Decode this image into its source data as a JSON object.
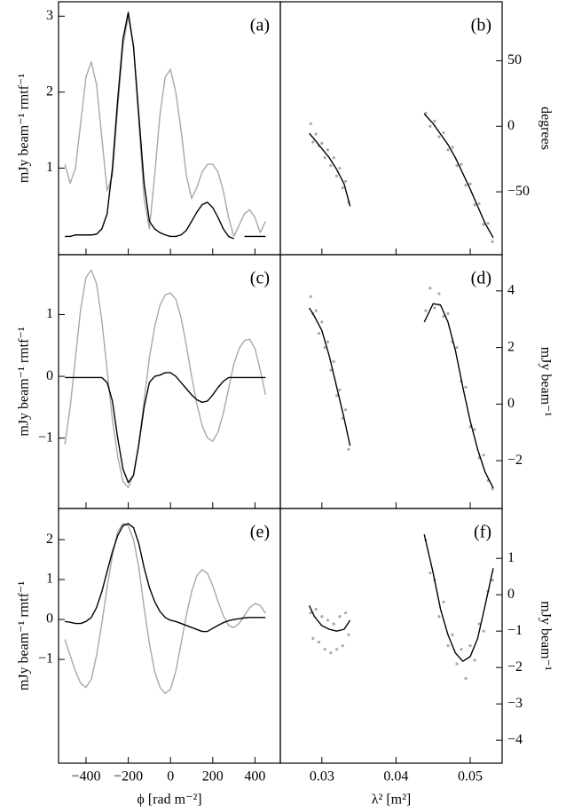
{
  "chart_data": [
    {
      "type": "line",
      "label": "(a)",
      "ylabel": "mJy beam⁻¹ rmtf⁻¹",
      "xlim": [
        -530,
        520
      ],
      "ylim": [
        -0.14,
        3.19
      ],
      "yticks": [
        1,
        2,
        3
      ],
      "x": [
        -500,
        -475,
        -450,
        -425,
        -400,
        -375,
        -350,
        -325,
        -300,
        -275,
        -250,
        -225,
        -200,
        -175,
        -150,
        -125,
        -100,
        -75,
        -50,
        -25,
        0,
        25,
        50,
        75,
        100,
        125,
        150,
        175,
        200,
        225,
        250,
        275,
        300,
        325,
        350,
        375,
        400,
        425,
        450
      ],
      "series": [
        {
          "color": "#a8a8a8",
          "values": [
            1.05,
            0.8,
            1.0,
            1.6,
            2.2,
            2.4,
            2.1,
            1.4,
            0.7,
            0.9,
            1.8,
            2.6,
            3.0,
            2.6,
            1.6,
            0.6,
            0.2,
            0.9,
            1.7,
            2.2,
            2.3,
            2.0,
            1.5,
            0.9,
            0.6,
            0.75,
            0.95,
            1.05,
            1.05,
            0.95,
            0.7,
            0.35,
            0.1,
            0.25,
            0.4,
            0.45,
            0.35,
            0.15,
            0.3
          ]
        },
        {
          "color": "#000000",
          "values": [
            0.1,
            0.1,
            0.12,
            0.12,
            0.12,
            0.12,
            0.13,
            0.2,
            0.4,
            1.0,
            1.9,
            2.7,
            3.05,
            2.6,
            1.7,
            0.8,
            0.3,
            0.2,
            0.15,
            0.12,
            0.1,
            0.1,
            0.12,
            0.18,
            0.3,
            0.42,
            0.52,
            0.55,
            0.48,
            0.35,
            0.2,
            0.1,
            0.07,
            null,
            0.1,
            0.1,
            0.1,
            0.1,
            0.1
          ]
        }
      ]
    },
    {
      "type": "scatter",
      "label": "(b)",
      "ylabel": "degrees",
      "xlim": [
        0.0244,
        0.0543
      ],
      "ylim": [
        -98,
        95
      ],
      "yticks": [
        {
          "value": -50,
          "label": "−50"
        },
        0,
        50
      ],
      "points": {
        "color": "#a8a8a8",
        "x": [
          0.0285,
          0.0288,
          0.0292,
          0.0296,
          0.03,
          0.0304,
          0.0308,
          0.0312,
          0.0316,
          0.032,
          0.0324,
          0.0328,
          0.0332,
          0.0336,
          0.044,
          0.0446,
          0.0452,
          0.0458,
          0.0464,
          0.047,
          0.0476,
          0.0482,
          0.0488,
          0.0494,
          0.05,
          0.0506,
          0.0512,
          0.0518,
          0.0524,
          0.053
        ],
        "values": [
          2,
          -12,
          -6,
          -15,
          -13,
          -24,
          -18,
          -30,
          -24,
          -38,
          -32,
          -47,
          -42,
          -58,
          10,
          0,
          4,
          -8,
          -5,
          -18,
          -16,
          -30,
          -29,
          -45,
          -44,
          -60,
          -59,
          -75,
          -74,
          -88
        ]
      },
      "fit": {
        "color": "#000000",
        "x": [
          0.0283,
          0.029,
          0.03,
          0.031,
          0.032,
          0.033,
          0.0338,
          null,
          0.0438,
          0.045,
          0.046,
          0.047,
          0.048,
          0.049,
          0.05,
          0.051,
          0.052,
          0.0531
        ],
        "values": [
          -5.4,
          -10,
          -17,
          -24,
          -33,
          -44,
          -61,
          null,
          9.5,
          2,
          -6,
          -14,
          -24,
          -36,
          -48,
          -61,
          -74,
          -85
        ]
      }
    },
    {
      "type": "line",
      "label": "(c)",
      "ylabel": "mJy beam⁻¹ rmtf⁻¹",
      "xlim": [
        -530,
        520
      ],
      "ylim": [
        -2.14,
        1.97
      ],
      "yticks": [
        {
          "value": -1,
          "label": "−1"
        },
        0,
        1
      ],
      "x": [
        -500,
        -475,
        -450,
        -425,
        -400,
        -375,
        -350,
        -325,
        -300,
        -275,
        -250,
        -225,
        -200,
        -175,
        -150,
        -125,
        -100,
        -75,
        -50,
        -25,
        0,
        25,
        50,
        75,
        100,
        125,
        150,
        175,
        200,
        225,
        250,
        275,
        300,
        325,
        350,
        375,
        400,
        425,
        450
      ],
      "series": [
        {
          "color": "#a8a8a8",
          "values": [
            -1.1,
            -0.5,
            0.3,
            1.1,
            1.6,
            1.72,
            1.5,
            0.9,
            0.1,
            -0.7,
            -1.3,
            -1.7,
            -1.8,
            -1.6,
            -1.1,
            -0.4,
            0.3,
            0.8,
            1.15,
            1.32,
            1.35,
            1.25,
            0.95,
            0.5,
            0,
            -0.45,
            -0.8,
            -1.0,
            -1.05,
            -0.9,
            -0.6,
            -0.2,
            0.2,
            0.45,
            0.58,
            0.6,
            0.45,
            0.1,
            -0.3
          ]
        },
        {
          "color": "#000000",
          "values": [
            -0.02,
            -0.02,
            -0.02,
            -0.02,
            -0.02,
            -0.02,
            -0.02,
            -0.02,
            -0.1,
            -0.4,
            -1.0,
            -1.5,
            -1.72,
            -1.6,
            -1.1,
            -0.5,
            -0.1,
            0,
            0.02,
            0.06,
            0.06,
            0,
            -0.1,
            -0.2,
            -0.3,
            -0.38,
            -0.42,
            -0.4,
            -0.3,
            -0.18,
            -0.08,
            -0.02,
            -0.02,
            -0.02,
            -0.02,
            -0.02,
            -0.02,
            -0.02,
            -0.02
          ]
        }
      ]
    },
    {
      "type": "scatter",
      "label": "(d)",
      "ylabel": "mJy beam⁻¹",
      "xlim": [
        0.0244,
        0.0543
      ],
      "ylim": [
        -3.69,
        5.28
      ],
      "yticks": [
        {
          "value": -2,
          "label": "−2"
        },
        0,
        2,
        4
      ],
      "points": {
        "color": "#a8a8a8",
        "x": [
          0.0285,
          0.0288,
          0.0292,
          0.0296,
          0.03,
          0.0304,
          0.0308,
          0.0312,
          0.0316,
          0.032,
          0.0324,
          0.0328,
          0.0332,
          0.0336,
          0.044,
          0.0446,
          0.0452,
          0.0458,
          0.0464,
          0.047,
          0.0476,
          0.0482,
          0.0488,
          0.0494,
          0.05,
          0.0506,
          0.0512,
          0.0518,
          0.0524,
          0.053
        ],
        "values": [
          3.8,
          3.2,
          3.3,
          2.5,
          2.9,
          2.0,
          2.2,
          1.2,
          1.5,
          0.3,
          0.5,
          -0.5,
          -0.2,
          -1.6,
          3.3,
          4.1,
          3.4,
          3.9,
          3.1,
          3.2,
          2.2,
          2.0,
          0.8,
          0.6,
          -0.8,
          -0.9,
          -1.9,
          -1.8,
          -2.7,
          -3.0
        ]
      },
      "fit": {
        "color": "#000000",
        "x": [
          0.0283,
          0.029,
          0.03,
          0.031,
          0.032,
          0.033,
          0.0338,
          null,
          0.0438,
          0.045,
          0.046,
          0.047,
          0.048,
          0.049,
          0.05,
          0.051,
          0.052,
          0.0531
        ],
        "values": [
          3.4,
          3.1,
          2.6,
          1.7,
          0.6,
          -0.5,
          -1.47,
          null,
          2.9,
          3.55,
          3.5,
          2.9,
          1.9,
          0.6,
          -0.6,
          -1.6,
          -2.4,
          -2.97
        ]
      }
    },
    {
      "type": "line",
      "label": "(e)",
      "ylabel": "mJy beam⁻¹ rmtf⁻¹",
      "xlabel": "ϕ [rad m⁻²]",
      "xlim": [
        -530,
        520
      ],
      "ylim": [
        -3.6,
        2.78
      ],
      "xticks": [
        {
          "value": -400,
          "label": "−400"
        },
        {
          "value": -200,
          "label": "−200"
        },
        0,
        200,
        400
      ],
      "yticks": [
        {
          "value": -1,
          "label": "−1"
        },
        0,
        1,
        2
      ],
      "x": [
        -500,
        -475,
        -450,
        -425,
        -400,
        -375,
        -350,
        -325,
        -300,
        -275,
        -250,
        -225,
        -200,
        -175,
        -150,
        -125,
        -100,
        -75,
        -50,
        -25,
        0,
        25,
        50,
        75,
        100,
        125,
        150,
        175,
        200,
        225,
        250,
        275,
        300,
        325,
        350,
        375,
        400,
        425,
        450
      ],
      "series": [
        {
          "color": "#a8a8a8",
          "values": [
            -0.5,
            -0.9,
            -1.3,
            -1.6,
            -1.7,
            -1.5,
            -0.9,
            -0.1,
            0.8,
            1.6,
            2.2,
            2.4,
            2.35,
            2.0,
            1.3,
            0.3,
            -0.6,
            -1.3,
            -1.7,
            -1.85,
            -1.75,
            -1.3,
            -0.6,
            0.1,
            0.7,
            1.1,
            1.25,
            1.15,
            0.85,
            0.45,
            0.1,
            -0.15,
            -0.2,
            -0.1,
            0.1,
            0.3,
            0.4,
            0.35,
            0.15
          ]
        },
        {
          "color": "#000000",
          "values": [
            -0.05,
            -0.07,
            -0.1,
            -0.1,
            -0.05,
            0.05,
            0.3,
            0.7,
            1.2,
            1.7,
            2.1,
            2.35,
            2.4,
            2.3,
            1.9,
            1.3,
            0.8,
            0.45,
            0.2,
            0.05,
            -0.02,
            -0.05,
            -0.1,
            -0.15,
            -0.2,
            -0.25,
            -0.3,
            -0.3,
            -0.22,
            -0.15,
            -0.08,
            -0.03,
            0,
            0.02,
            0.04,
            0.05,
            0.05,
            0.05,
            0.05
          ]
        }
      ]
    },
    {
      "type": "scatter",
      "label": "(f)",
      "ylabel": "mJy beam⁻¹",
      "xlabel": "λ² [m²]",
      "xlim": [
        0.0244,
        0.0543
      ],
      "ylim": [
        -4.63,
        2.37
      ],
      "xticks": [
        0.03,
        0.04,
        0.05
      ],
      "yticks": [
        {
          "value": -4,
          "label": "−4"
        },
        {
          "value": -3,
          "label": "−3"
        },
        {
          "value": -2,
          "label": "−2"
        },
        {
          "value": -1,
          "label": "−1"
        },
        0,
        1
      ],
      "points": {
        "color": "#a8a8a8",
        "x": [
          0.0285,
          0.0288,
          0.0292,
          0.0296,
          0.03,
          0.0304,
          0.0308,
          0.0312,
          0.0316,
          0.032,
          0.0324,
          0.0328,
          0.0332,
          0.0336,
          0.044,
          0.0446,
          0.0452,
          0.0458,
          0.0464,
          0.047,
          0.0476,
          0.0482,
          0.0488,
          0.0494,
          0.05,
          0.0506,
          0.0512,
          0.0518,
          0.0524,
          0.053
        ],
        "values": [
          -0.5,
          -1.2,
          -0.4,
          -1.3,
          -0.6,
          -1.5,
          -0.7,
          -1.6,
          -0.8,
          -1.5,
          -0.6,
          -1.4,
          -0.5,
          -1.1,
          1.5,
          0.6,
          0.4,
          -0.6,
          -0.2,
          -1.4,
          -1.1,
          -1.9,
          -1.5,
          -2.3,
          -1.4,
          -1.8,
          -0.8,
          -1.0,
          0.1,
          0.4
        ]
      },
      "fit": {
        "color": "#000000",
        "x": [
          0.0283,
          0.029,
          0.03,
          0.031,
          0.032,
          0.033,
          0.0338,
          null,
          0.0438,
          0.045,
          0.046,
          0.047,
          0.048,
          0.049,
          0.05,
          0.051,
          0.052,
          0.0531
        ],
        "values": [
          -0.3,
          -0.6,
          -0.85,
          -0.95,
          -1.0,
          -0.95,
          -0.7,
          null,
          1.66,
          0.6,
          -0.4,
          -1.1,
          -1.6,
          -1.83,
          -1.7,
          -1.2,
          -0.3,
          0.73
        ]
      }
    }
  ]
}
